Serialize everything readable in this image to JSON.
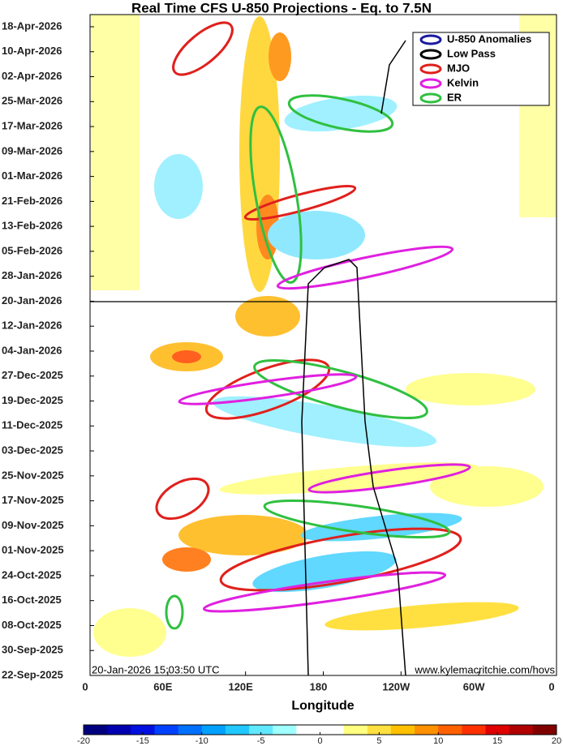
{
  "chart_data": {
    "type": "heatmap",
    "title": "Real Time CFS U-850 Projections - Eq. to 7.5N",
    "xlabel": "Longitude",
    "xlim": [
      0,
      360
    ],
    "xticks": [
      0,
      {
        "value": 60,
        "label": "60E"
      },
      {
        "value": 120,
        "label": "120E"
      },
      180,
      {
        "value": 240,
        "label": "120W"
      },
      {
        "value": 300,
        "label": "60W"
      },
      {
        "value": 360,
        "label": "0"
      }
    ],
    "categories": [
      "22-Sep-2025",
      "30-Sep-2025",
      "08-Oct-2025",
      "16-Oct-2025",
      "24-Oct-2025",
      "01-Nov-2025",
      "09-Nov-2025",
      "17-Nov-2025",
      "25-Nov-2025",
      "03-Dec-2025",
      "11-Dec-2025",
      "19-Dec-2025",
      "27-Dec-2025",
      "04-Jan-2026",
      "12-Jan-2026",
      "20-Jan-2026",
      "28-Jan-2026",
      "05-Feb-2026",
      "13-Feb-2026",
      "21-Feb-2026",
      "01-Mar-2026",
      "09-Mar-2026",
      "17-Mar-2026",
      "25-Mar-2026",
      "02-Apr-2026",
      "10-Apr-2026",
      "18-Apr-2026"
    ],
    "legend": [
      {
        "name": "U-850 Anomalies",
        "color": "#1a1aa0"
      },
      {
        "name": "Low Pass",
        "color": "#000000"
      },
      {
        "name": "MJO",
        "color": "#e0201c"
      },
      {
        "name": "Kelvin",
        "color": "#e020e0"
      },
      {
        "name": "ER",
        "color": "#30c040"
      }
    ],
    "annotations": [
      "20-Jan-2026 15:03:50 UTC",
      "www.kylemacritchie.com/hovs"
    ],
    "colorbar": {
      "lim": [
        -20,
        20
      ],
      "ticks": [
        -20,
        -15,
        -10,
        -5,
        0,
        5,
        10,
        15,
        20
      ],
      "colors": [
        "#00007f",
        "#0000b0",
        "#0010e0",
        "#0040ff",
        "#0070ff",
        "#00a0ff",
        "#20c8ff",
        "#60e8ff",
        "#a0ffff",
        "#ffffff",
        "#ffffff",
        "#ffff80",
        "#ffe040",
        "#ffc000",
        "#ff9000",
        "#ff6000",
        "#ff3000",
        "#e00000",
        "#b00000",
        "#800000"
      ]
    }
  }
}
